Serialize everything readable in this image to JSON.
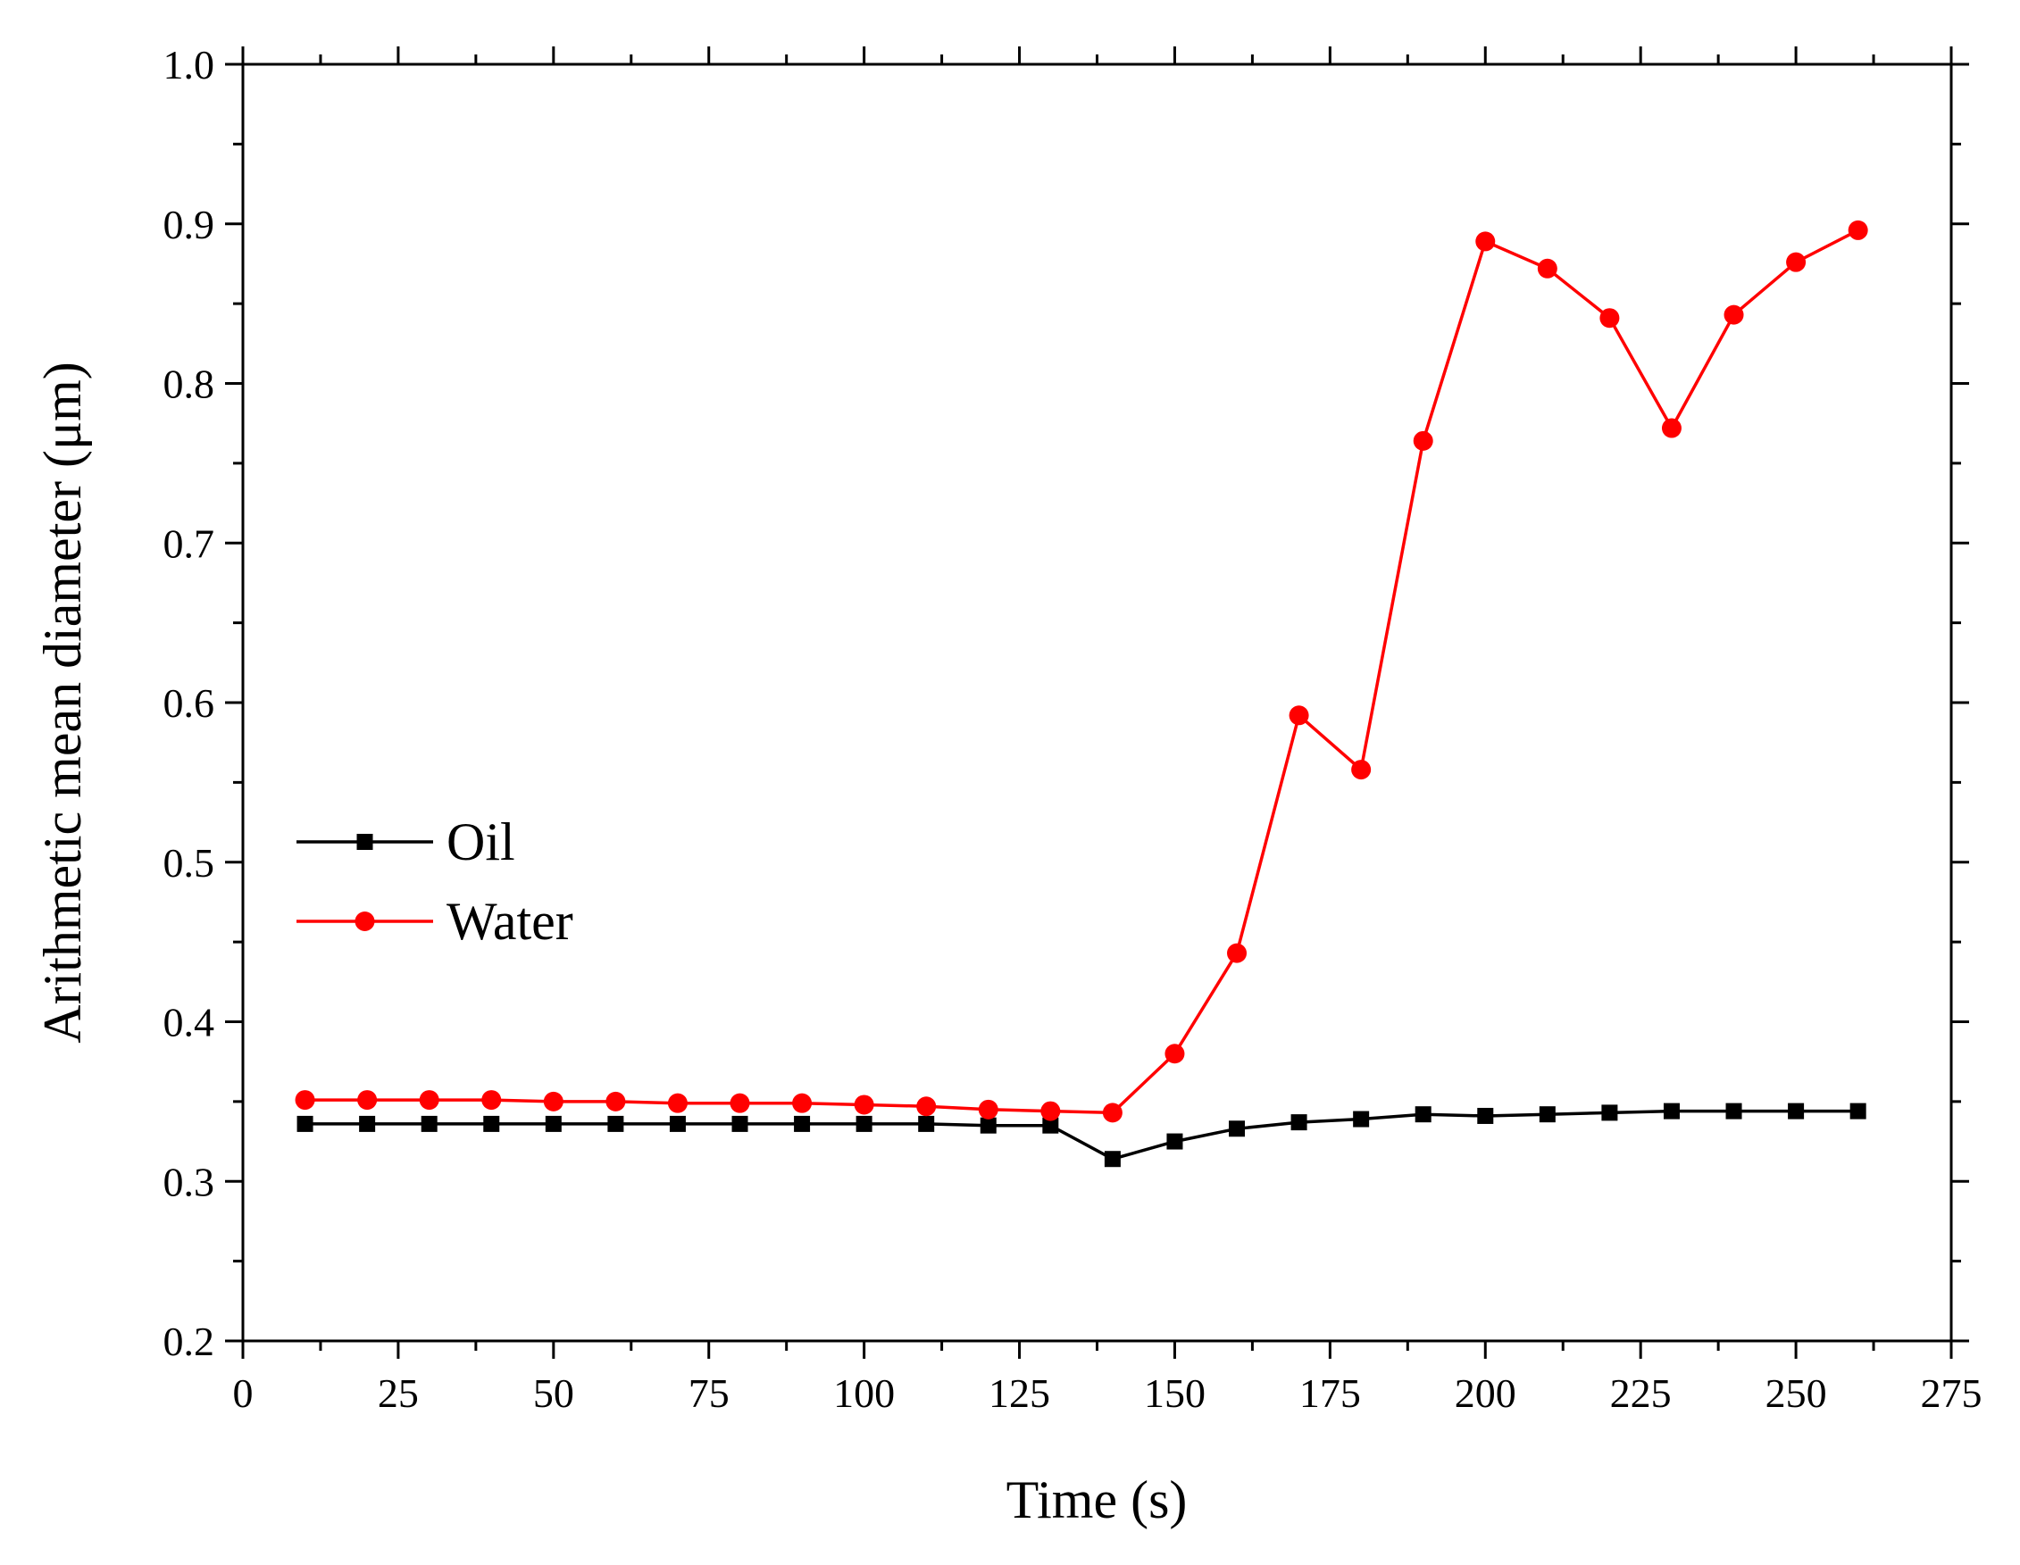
{
  "chart_data": {
    "type": "line",
    "title": "",
    "xlabel": "Time (s)",
    "ylabel": "Arithmetic mean diameter (μm)",
    "xlim": [
      0,
      275
    ],
    "ylim": [
      0.2,
      1.0
    ],
    "xticks": [
      0,
      25,
      50,
      75,
      100,
      125,
      150,
      175,
      200,
      225,
      250,
      275
    ],
    "yticks": [
      0.2,
      0.3,
      0.4,
      0.5,
      0.6,
      0.7,
      0.8,
      0.9,
      1.0
    ],
    "xtick_labels": [
      "0",
      "25",
      "50",
      "75",
      "100",
      "125",
      "150",
      "175",
      "200",
      "225",
      "250",
      "275"
    ],
    "ytick_labels": [
      "0.2",
      "0.3",
      "0.4",
      "0.5",
      "0.6",
      "0.7",
      "0.8",
      "0.9",
      "1.0"
    ],
    "grid": false,
    "legend_position": "middle-left",
    "x": [
      10,
      20,
      30,
      40,
      50,
      60,
      70,
      80,
      90,
      100,
      110,
      120,
      130,
      140,
      150,
      160,
      170,
      180,
      190,
      200,
      210,
      220,
      230,
      240,
      250,
      260
    ],
    "series": [
      {
        "name": "Oil",
        "color": "#000000",
        "marker": "square",
        "values": [
          0.336,
          0.336,
          0.336,
          0.336,
          0.336,
          0.336,
          0.336,
          0.336,
          0.336,
          0.336,
          0.336,
          0.335,
          0.335,
          0.314,
          0.325,
          0.333,
          0.337,
          0.339,
          0.342,
          0.341,
          0.342,
          0.343,
          0.344,
          0.344,
          0.344,
          0.344
        ]
      },
      {
        "name": "Water",
        "color": "#ff0000",
        "marker": "circle",
        "values": [
          0.351,
          0.351,
          0.351,
          0.351,
          0.35,
          0.35,
          0.349,
          0.349,
          0.349,
          0.348,
          0.347,
          0.345,
          0.344,
          0.343,
          0.38,
          0.443,
          0.592,
          0.558,
          0.764,
          0.889,
          0.872,
          0.841,
          0.772,
          0.843,
          0.876,
          0.896
        ]
      }
    ]
  }
}
